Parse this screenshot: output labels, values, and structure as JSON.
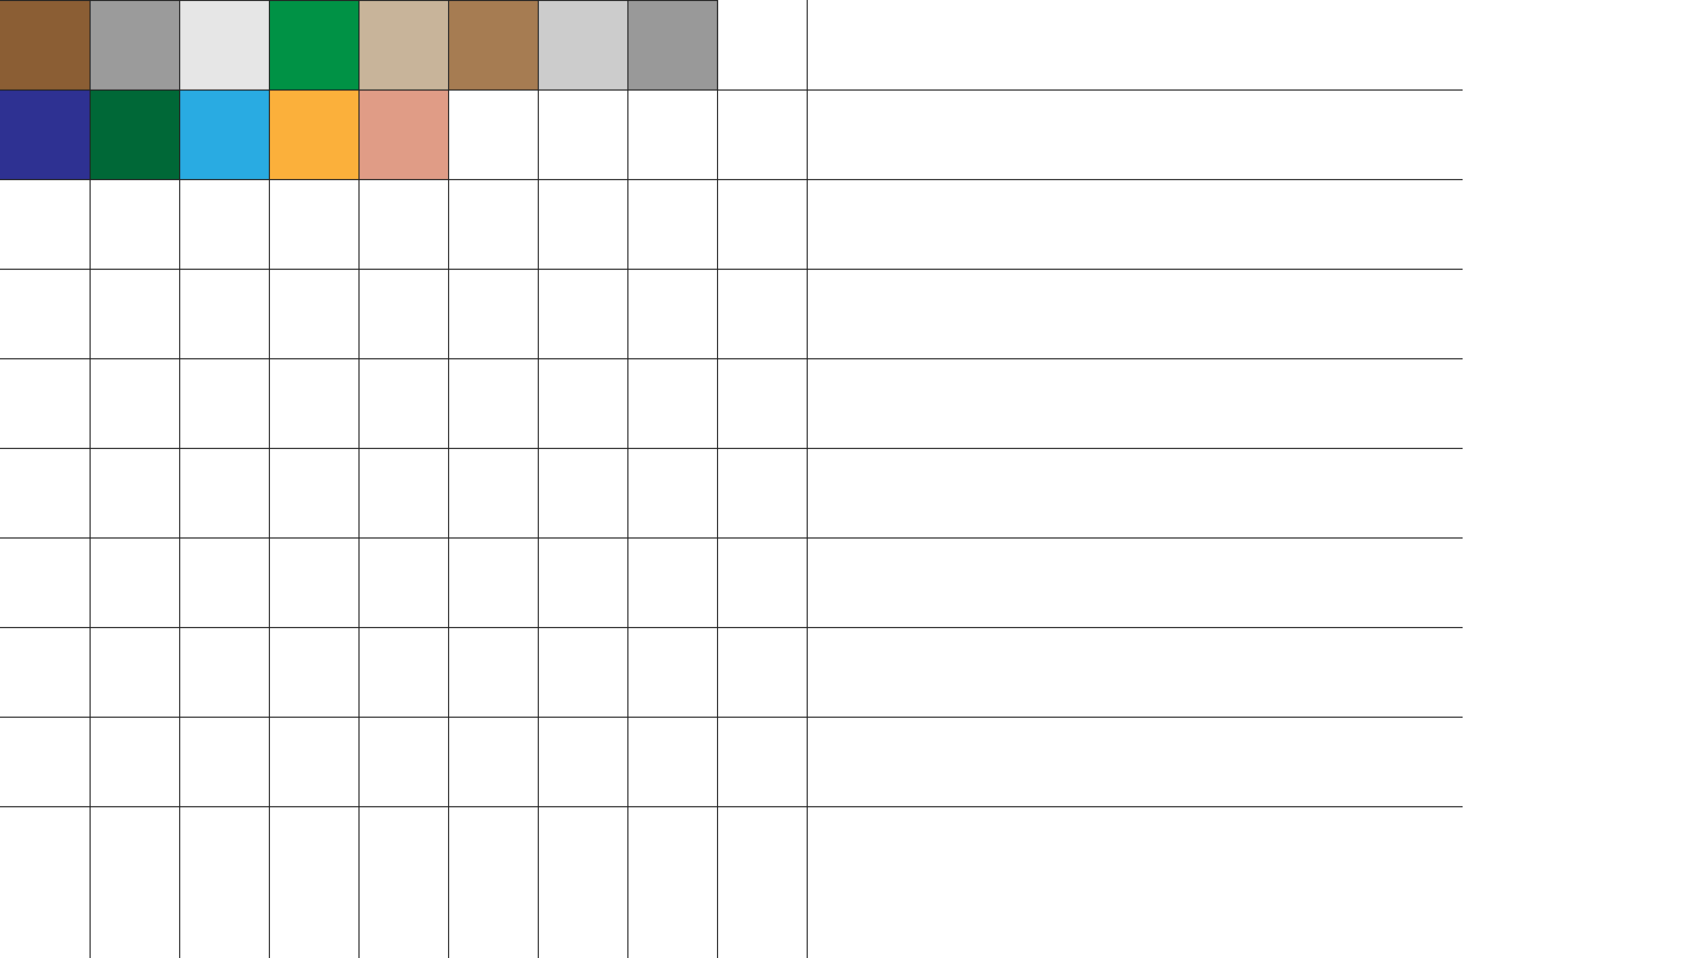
{
  "palette": {
    "row1": [
      "#8B5E34",
      "#9B9B9B",
      "#E6E6E6",
      "#009245",
      "#C8B49A",
      "#A67C52",
      "#CCCCCC",
      "#999999"
    ],
    "row2": [
      "#2E3192",
      "#006837",
      "#29ABE2",
      "#FBB03B",
      "#E09C86"
    ]
  },
  "grid_line_color": "#222222"
}
